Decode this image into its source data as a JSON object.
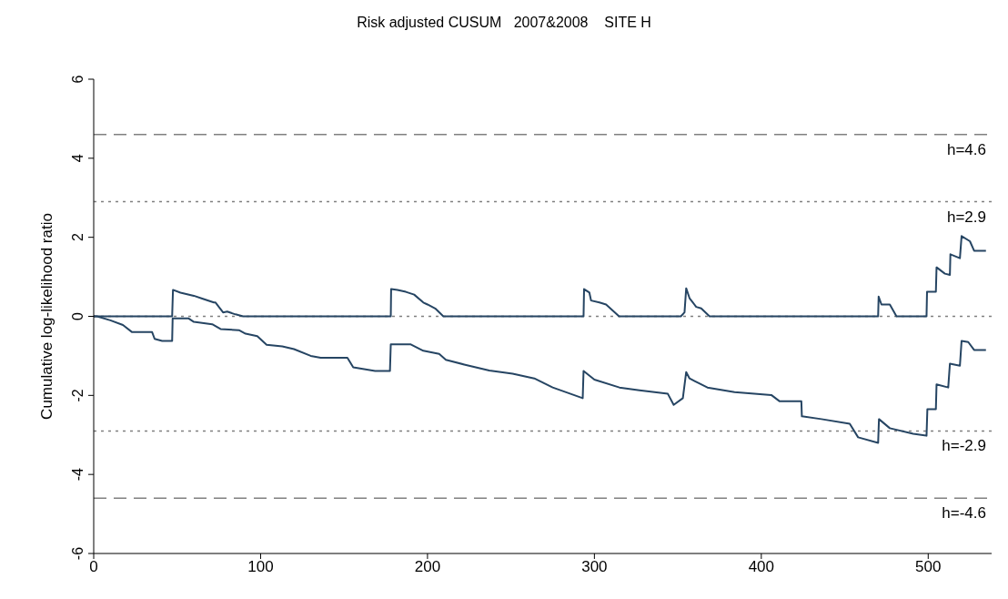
{
  "chart_data": {
    "type": "line",
    "title": "Risk adjusted CUSUM   2007&2008    SITE H",
    "ylabel": "Cumulative log-likelihood ratio",
    "xlim": [
      0,
      538
    ],
    "xticks": [
      0,
      100,
      200,
      300,
      400,
      500
    ],
    "ylim": [
      -6,
      6
    ],
    "yticks": [
      -6,
      -4,
      -2,
      0,
      2,
      4,
      6
    ],
    "grid": false,
    "legend": false,
    "marker": "none",
    "line_style": "solid",
    "series": [
      {
        "color": "#264563",
        "x": [
          0,
          47,
          47.5,
          52,
          60,
          65,
          72,
          73,
          77.5,
          80,
          85,
          89.5,
          178,
          178.2,
          182,
          187,
          192,
          197.5,
          200,
          204.6,
          209.5,
          293.5,
          293.8,
          297,
          298,
          303,
          307,
          314.8,
          351.8,
          354,
          355,
          357,
          361,
          364,
          369,
          470,
          470.3,
          472,
          477,
          481,
          499,
          499.3,
          504.6,
          505,
          510,
          513,
          513.3,
          519,
          520,
          525,
          527.5,
          534.6
        ],
        "values": [
          0,
          0,
          0.67,
          0.6,
          0.52,
          0.45,
          0.35,
          0.35,
          0.1,
          0.12,
          0.05,
          0,
          0,
          0.69,
          0.67,
          0.62,
          0.55,
          0.35,
          0.3,
          0.2,
          0,
          0,
          0.69,
          0.6,
          0.4,
          0.35,
          0.3,
          0,
          0,
          0.1,
          0.71,
          0.46,
          0.24,
          0.2,
          0,
          0,
          0.5,
          0.3,
          0.3,
          0,
          0,
          0.62,
          0.62,
          1.24,
          1.08,
          1.05,
          1.57,
          1.47,
          2.03,
          1.9,
          1.66,
          1.66
        ]
      },
      {
        "color": "#264563",
        "x": [
          0,
          2,
          10,
          17.5,
          23,
          35,
          36.5,
          41,
          47,
          47.3,
          56.7,
          60,
          71,
          76,
          87,
          91,
          98,
          103.6,
          113,
          120,
          130,
          136,
          152,
          155.5,
          168.6,
          177.5,
          178,
          190,
          197.5,
          207,
          211,
          222,
          237,
          251,
          264,
          275,
          293,
          293.5,
          300,
          315,
          327,
          344,
          347.5,
          353,
          355,
          357,
          362,
          367.7,
          384,
          406,
          411,
          424,
          424.3,
          436,
          453,
          458,
          470,
          470.5,
          477,
          491,
          499,
          499.5,
          504.6,
          505,
          512,
          513,
          519,
          520,
          524,
          527.5,
          534.6
        ],
        "values": [
          0,
          0,
          -0.1,
          -0.22,
          -0.4,
          -0.4,
          -0.57,
          -0.62,
          -0.62,
          -0.05,
          -0.05,
          -0.14,
          -0.2,
          -0.32,
          -0.35,
          -0.44,
          -0.5,
          -0.72,
          -0.76,
          -0.83,
          -1.0,
          -1.05,
          -1.05,
          -1.29,
          -1.38,
          -1.38,
          -0.71,
          -0.71,
          -0.87,
          -0.95,
          -1.1,
          -1.22,
          -1.37,
          -1.45,
          -1.57,
          -1.8,
          -2.07,
          -1.38,
          -1.6,
          -1.8,
          -1.87,
          -1.96,
          -2.24,
          -2.07,
          -1.41,
          -1.57,
          -1.68,
          -1.8,
          -1.92,
          -1.99,
          -2.15,
          -2.15,
          -2.53,
          -2.6,
          -2.72,
          -3.06,
          -3.2,
          -2.6,
          -2.83,
          -2.97,
          -3.02,
          -2.35,
          -2.35,
          -1.72,
          -1.8,
          -1.2,
          -1.25,
          -0.62,
          -0.65,
          -0.85,
          -0.85
        ]
      }
    ],
    "ref_lines": [
      {
        "axis": "y",
        "value": 4.6,
        "label": "h=4.6",
        "color": "#808080",
        "line_style": "dashed"
      },
      {
        "axis": "y",
        "value": 2.9,
        "label": "h=2.9",
        "color": "#808080",
        "line_style": "dotted"
      },
      {
        "axis": "y",
        "value": 0,
        "label": null,
        "color": "#808080",
        "line_style": "dotted"
      },
      {
        "axis": "y",
        "value": -2.9,
        "label": "h=-2.9",
        "color": "#808080",
        "line_style": "dotted"
      },
      {
        "axis": "y",
        "value": -4.6,
        "label": "h=-4.6",
        "color": "#808080",
        "line_style": "dashed"
      }
    ]
  }
}
